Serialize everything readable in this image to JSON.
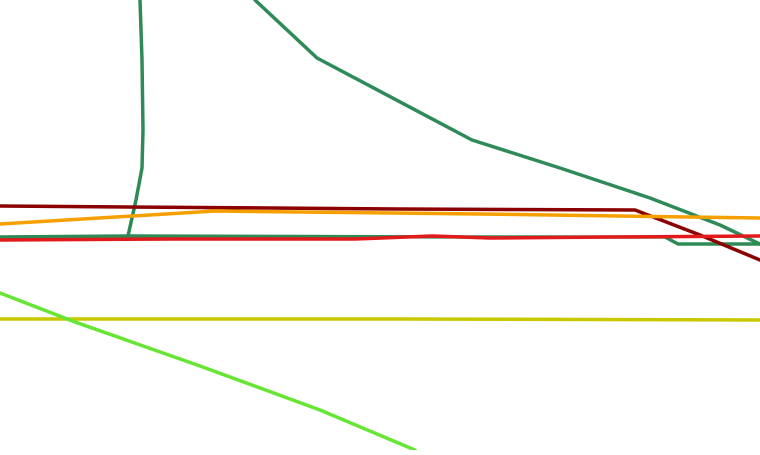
{
  "map": {
    "background": "#ffffff",
    "routes": [
      {
        "id": "route-teal-vertical",
        "color": "#2e8b57"
      },
      {
        "id": "route-teal-diagonal",
        "color": "#2e8b57"
      },
      {
        "id": "route-teal-horizontal",
        "color": "#2e8b57"
      },
      {
        "id": "route-dark-red",
        "color": "#8b0000"
      },
      {
        "id": "route-orange",
        "color": "#f5a000"
      },
      {
        "id": "route-red",
        "color": "#e31a1c"
      },
      {
        "id": "route-yellow",
        "color": "#c8c800"
      },
      {
        "id": "route-light-green",
        "color": "#66e633"
      }
    ]
  }
}
